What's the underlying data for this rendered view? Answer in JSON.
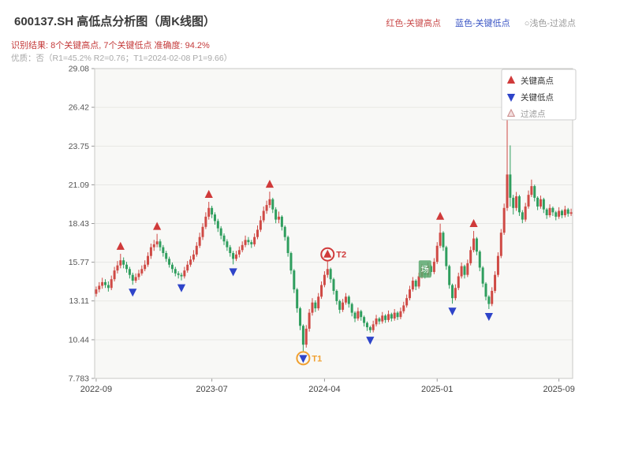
{
  "header": {
    "title": "600137.SH 高低点分析图（周K线图）",
    "legend_right": [
      {
        "label": "红色-关键高点",
        "color": "#c94a4a"
      },
      {
        "label": "蓝色-关键低点",
        "color": "#3a55c4"
      },
      {
        "label": "○浅色-过滤点",
        "color": "#9a9a9a"
      }
    ],
    "result_line": "识别结果: 8个关键高点, 7个关键低点   准确度: 94.2%",
    "quality_line": "优质：否（R1=45.2%  R2=0.76；T1=2024-02-08 P1=9.66）"
  },
  "chart_data": {
    "type": "candlestick",
    "title": "600137.SH 高低点分析图（周K线图）",
    "xlabel": "",
    "ylabel": "",
    "grid": true,
    "ylim": [
      7.783,
      29.08
    ],
    "y_ticks": [
      "29.08",
      "26.42",
      "23.75",
      "21.09",
      "18.43",
      "15.77",
      "13.11",
      "10.44",
      "7.783"
    ],
    "x_ticks": [
      {
        "index": 0,
        "label": "2022-09"
      },
      {
        "index": 38,
        "label": "2023-07"
      },
      {
        "index": 75,
        "label": "2024-04"
      },
      {
        "index": 112,
        "label": "2025-01"
      },
      {
        "index": 152,
        "label": "2025-09"
      }
    ],
    "up_color": "#cf4a45",
    "down_color": "#2f9e5e",
    "key_high_color": "#d03a3a",
    "key_low_color": "#2e44c9",
    "filtered_fill": "#f3dede",
    "filtered_stroke": "#c98a8a",
    "legend_box": [
      {
        "symbol": "up",
        "label": "关键高点"
      },
      {
        "symbol": "down",
        "label": "关键低点"
      },
      {
        "symbol": "filtered",
        "label": "过滤点"
      }
    ],
    "key_highs": [
      {
        "index": 8,
        "price": 16.35
      },
      {
        "index": 20,
        "price": 17.72
      },
      {
        "index": 37,
        "price": 19.92
      },
      {
        "index": 57,
        "price": 20.62
      },
      {
        "index": 76,
        "price": 15.82
      },
      {
        "index": 113,
        "price": 18.42
      },
      {
        "index": 124,
        "price": 17.92
      },
      {
        "index": 135,
        "price": 27.2
      }
    ],
    "key_lows": [
      {
        "index": 12,
        "price": 14.22
      },
      {
        "index": 28,
        "price": 14.52
      },
      {
        "index": 45,
        "price": 15.62
      },
      {
        "index": 68,
        "price": 9.66
      },
      {
        "index": 90,
        "price": 10.92
      },
      {
        "index": 117,
        "price": 12.92
      },
      {
        "index": 129,
        "price": 12.55
      }
    ],
    "annotations": [
      {
        "type": "circle",
        "index": 68,
        "price": 9.66,
        "at": "low",
        "label": "T1",
        "color": "#f0a030"
      },
      {
        "type": "circle",
        "index": 76,
        "price": 15.82,
        "at": "high",
        "label": "T2",
        "color": "#d03a3a"
      },
      {
        "type": "badge",
        "index": 108,
        "price": 15.3,
        "label": "场",
        "color": "#5aa86e"
      }
    ],
    "candles": [
      [
        13.6,
        14.1,
        13.4,
        13.9
      ],
      [
        13.9,
        14.4,
        13.7,
        14.15
      ],
      [
        14.15,
        14.7,
        13.95,
        14.4
      ],
      [
        14.4,
        14.6,
        14.0,
        14.2
      ],
      [
        14.2,
        14.45,
        13.75,
        14.0
      ],
      [
        14.0,
        14.85,
        13.85,
        14.6
      ],
      [
        14.6,
        15.45,
        14.45,
        15.2
      ],
      [
        15.2,
        15.85,
        15.0,
        15.55
      ],
      [
        15.55,
        16.35,
        15.35,
        15.9
      ],
      [
        15.9,
        16.1,
        15.35,
        15.6
      ],
      [
        15.6,
        15.8,
        15.05,
        15.3
      ],
      [
        15.3,
        15.45,
        14.65,
        14.9
      ],
      [
        14.9,
        15.05,
        14.22,
        14.5
      ],
      [
        14.5,
        15.0,
        14.35,
        14.75
      ],
      [
        14.75,
        15.25,
        14.55,
        15.0
      ],
      [
        15.0,
        15.55,
        14.85,
        15.3
      ],
      [
        15.3,
        15.9,
        15.15,
        15.6
      ],
      [
        15.6,
        16.45,
        15.45,
        16.2
      ],
      [
        16.2,
        17.05,
        16.0,
        16.8
      ],
      [
        16.8,
        17.3,
        16.55,
        17.0
      ],
      [
        17.0,
        17.72,
        16.8,
        17.2
      ],
      [
        17.2,
        17.35,
        16.55,
        16.8
      ],
      [
        16.8,
        16.95,
        16.15,
        16.4
      ],
      [
        16.4,
        16.55,
        15.8,
        16.0
      ],
      [
        16.0,
        16.15,
        15.4,
        15.6
      ],
      [
        15.6,
        15.75,
        15.05,
        15.3
      ],
      [
        15.3,
        15.45,
        14.8,
        15.0
      ],
      [
        15.0,
        15.15,
        14.65,
        14.9
      ],
      [
        14.9,
        15.05,
        14.52,
        14.8
      ],
      [
        14.8,
        15.45,
        14.65,
        15.2
      ],
      [
        15.2,
        15.85,
        15.05,
        15.6
      ],
      [
        15.6,
        16.2,
        15.45,
        15.95
      ],
      [
        15.95,
        16.6,
        15.8,
        16.3
      ],
      [
        16.3,
        17.15,
        16.15,
        16.9
      ],
      [
        16.9,
        17.8,
        16.75,
        17.5
      ],
      [
        17.5,
        18.45,
        17.3,
        18.2
      ],
      [
        18.2,
        19.2,
        18.05,
        18.9
      ],
      [
        18.9,
        19.92,
        18.7,
        19.5
      ],
      [
        19.5,
        19.65,
        18.8,
        19.05
      ],
      [
        19.05,
        19.2,
        18.35,
        18.6
      ],
      [
        18.6,
        18.75,
        17.85,
        18.1
      ],
      [
        18.1,
        18.25,
        17.35,
        17.6
      ],
      [
        17.6,
        17.75,
        16.95,
        17.2
      ],
      [
        17.2,
        17.35,
        16.55,
        16.8
      ],
      [
        16.8,
        16.95,
        16.15,
        16.4
      ],
      [
        16.4,
        16.55,
        15.62,
        16.0
      ],
      [
        16.0,
        16.55,
        15.85,
        16.3
      ],
      [
        16.3,
        16.85,
        16.1,
        16.6
      ],
      [
        16.6,
        17.2,
        16.45,
        16.95
      ],
      [
        16.95,
        17.6,
        16.8,
        17.3
      ],
      [
        17.3,
        17.5,
        16.95,
        17.15
      ],
      [
        17.15,
        17.3,
        16.75,
        17.0
      ],
      [
        17.0,
        17.75,
        16.85,
        17.5
      ],
      [
        17.5,
        18.3,
        17.35,
        18.0
      ],
      [
        18.0,
        18.95,
        17.85,
        18.65
      ],
      [
        18.65,
        19.6,
        18.5,
        19.3
      ],
      [
        19.3,
        20.0,
        19.1,
        19.7
      ],
      [
        19.7,
        20.62,
        19.5,
        20.1
      ],
      [
        20.1,
        20.2,
        19.15,
        19.4
      ],
      [
        19.4,
        19.55,
        18.45,
        18.7
      ],
      [
        18.7,
        19.25,
        18.45,
        18.9
      ],
      [
        18.9,
        19.0,
        17.95,
        18.2
      ],
      [
        18.2,
        18.3,
        17.25,
        17.5
      ],
      [
        17.5,
        17.6,
        16.15,
        16.4
      ],
      [
        16.4,
        16.5,
        14.95,
        15.2
      ],
      [
        15.2,
        15.3,
        13.65,
        13.9
      ],
      [
        13.9,
        14.0,
        12.3,
        12.6
      ],
      [
        12.6,
        12.7,
        11.1,
        11.4
      ],
      [
        11.4,
        11.5,
        9.66,
        10.1
      ],
      [
        10.1,
        11.45,
        9.9,
        11.2
      ],
      [
        11.2,
        12.55,
        11.0,
        12.3
      ],
      [
        12.3,
        13.3,
        12.1,
        13.0
      ],
      [
        13.0,
        13.15,
        12.35,
        12.6
      ],
      [
        12.6,
        13.65,
        12.45,
        13.4
      ],
      [
        13.4,
        14.45,
        13.25,
        14.2
      ],
      [
        14.2,
        15.15,
        14.05,
        14.9
      ],
      [
        14.9,
        15.82,
        14.7,
        15.3
      ],
      [
        15.3,
        15.4,
        14.35,
        14.6
      ],
      [
        14.6,
        14.7,
        13.55,
        13.8
      ],
      [
        13.8,
        13.9,
        12.85,
        13.1
      ],
      [
        13.1,
        13.2,
        12.25,
        12.5
      ],
      [
        12.5,
        13.25,
        12.35,
        13.0
      ],
      [
        13.0,
        13.65,
        12.85,
        13.4
      ],
      [
        13.4,
        13.5,
        12.65,
        12.9
      ],
      [
        12.9,
        13.0,
        12.05,
        12.3
      ],
      [
        12.3,
        12.4,
        11.65,
        11.9
      ],
      [
        11.9,
        12.65,
        11.75,
        12.4
      ],
      [
        12.4,
        12.5,
        11.75,
        12.0
      ],
      [
        12.0,
        12.1,
        11.35,
        11.6
      ],
      [
        11.6,
        11.7,
        11.05,
        11.3
      ],
      [
        11.3,
        11.4,
        10.92,
        11.1
      ],
      [
        11.1,
        11.75,
        10.95,
        11.5
      ],
      [
        11.5,
        12.15,
        11.35,
        11.9
      ],
      [
        11.9,
        12.0,
        11.5,
        11.7
      ],
      [
        11.7,
        12.35,
        11.55,
        12.1
      ],
      [
        12.1,
        12.2,
        11.6,
        11.8
      ],
      [
        11.8,
        12.45,
        11.65,
        12.2
      ],
      [
        12.2,
        12.3,
        11.7,
        11.9
      ],
      [
        11.9,
        12.55,
        11.75,
        12.3
      ],
      [
        12.3,
        12.4,
        11.8,
        12.0
      ],
      [
        12.0,
        12.65,
        11.85,
        12.4
      ],
      [
        12.4,
        13.05,
        12.25,
        12.8
      ],
      [
        12.8,
        13.55,
        12.65,
        13.3
      ],
      [
        13.3,
        14.15,
        13.15,
        13.9
      ],
      [
        13.9,
        14.75,
        13.75,
        14.5
      ],
      [
        14.5,
        14.6,
        13.85,
        14.1
      ],
      [
        14.1,
        15.05,
        13.95,
        14.8
      ],
      [
        14.8,
        15.65,
        14.65,
        15.4
      ],
      [
        15.4,
        15.5,
        14.65,
        14.9
      ],
      [
        14.9,
        15.75,
        14.75,
        15.5
      ],
      [
        15.5,
        15.6,
        14.85,
        15.1
      ],
      [
        15.1,
        16.05,
        14.95,
        15.8
      ],
      [
        15.8,
        17.15,
        15.65,
        16.9
      ],
      [
        16.9,
        18.42,
        16.75,
        17.8
      ],
      [
        17.8,
        17.9,
        16.55,
        16.8
      ],
      [
        16.8,
        16.9,
        15.25,
        15.5
      ],
      [
        15.5,
        15.6,
        13.95,
        14.2
      ],
      [
        14.2,
        14.3,
        12.92,
        13.3
      ],
      [
        13.3,
        14.25,
        13.15,
        14.0
      ],
      [
        14.0,
        15.05,
        13.85,
        14.8
      ],
      [
        14.8,
        15.75,
        14.65,
        15.5
      ],
      [
        15.5,
        15.6,
        14.65,
        14.9
      ],
      [
        14.9,
        15.95,
        14.75,
        15.7
      ],
      [
        15.7,
        16.85,
        15.55,
        16.6
      ],
      [
        16.6,
        17.92,
        16.45,
        17.4
      ],
      [
        17.4,
        17.5,
        16.25,
        16.5
      ],
      [
        16.5,
        16.6,
        15.15,
        15.4
      ],
      [
        15.4,
        15.5,
        14.05,
        14.3
      ],
      [
        14.3,
        14.4,
        13.15,
        13.4
      ],
      [
        13.4,
        13.5,
        12.55,
        12.9
      ],
      [
        12.9,
        14.05,
        12.75,
        13.8
      ],
      [
        13.8,
        15.15,
        13.65,
        14.9
      ],
      [
        14.9,
        16.45,
        14.75,
        16.2
      ],
      [
        16.2,
        18.05,
        16.05,
        17.8
      ],
      [
        17.8,
        19.8,
        17.65,
        19.5
      ],
      [
        19.5,
        27.2,
        19.3,
        21.8
      ],
      [
        21.8,
        23.8,
        19.6,
        20.2
      ],
      [
        20.2,
        20.4,
        19.05,
        19.5
      ],
      [
        19.5,
        20.6,
        19.3,
        20.3
      ],
      [
        20.3,
        20.4,
        18.95,
        19.2
      ],
      [
        19.2,
        19.35,
        18.45,
        18.7
      ],
      [
        18.7,
        19.85,
        18.55,
        19.6
      ],
      [
        19.6,
        20.7,
        19.45,
        20.4
      ],
      [
        20.4,
        21.45,
        20.25,
        21.0
      ],
      [
        21.0,
        21.1,
        19.95,
        20.2
      ],
      [
        20.2,
        20.3,
        19.35,
        19.6
      ],
      [
        19.6,
        20.35,
        19.45,
        20.1
      ],
      [
        20.1,
        20.2,
        19.15,
        19.4
      ],
      [
        19.4,
        19.5,
        18.75,
        19.0
      ],
      [
        19.0,
        19.75,
        18.85,
        19.5
      ],
      [
        19.5,
        19.6,
        18.95,
        19.2
      ],
      [
        19.2,
        19.3,
        18.65,
        18.9
      ],
      [
        18.9,
        19.55,
        18.75,
        19.3
      ],
      [
        19.3,
        19.4,
        18.8,
        19.0
      ],
      [
        19.0,
        19.65,
        18.85,
        19.4
      ],
      [
        19.4,
        19.5,
        18.9,
        19.1
      ],
      [
        19.1,
        19.45,
        18.95,
        19.2
      ]
    ]
  }
}
